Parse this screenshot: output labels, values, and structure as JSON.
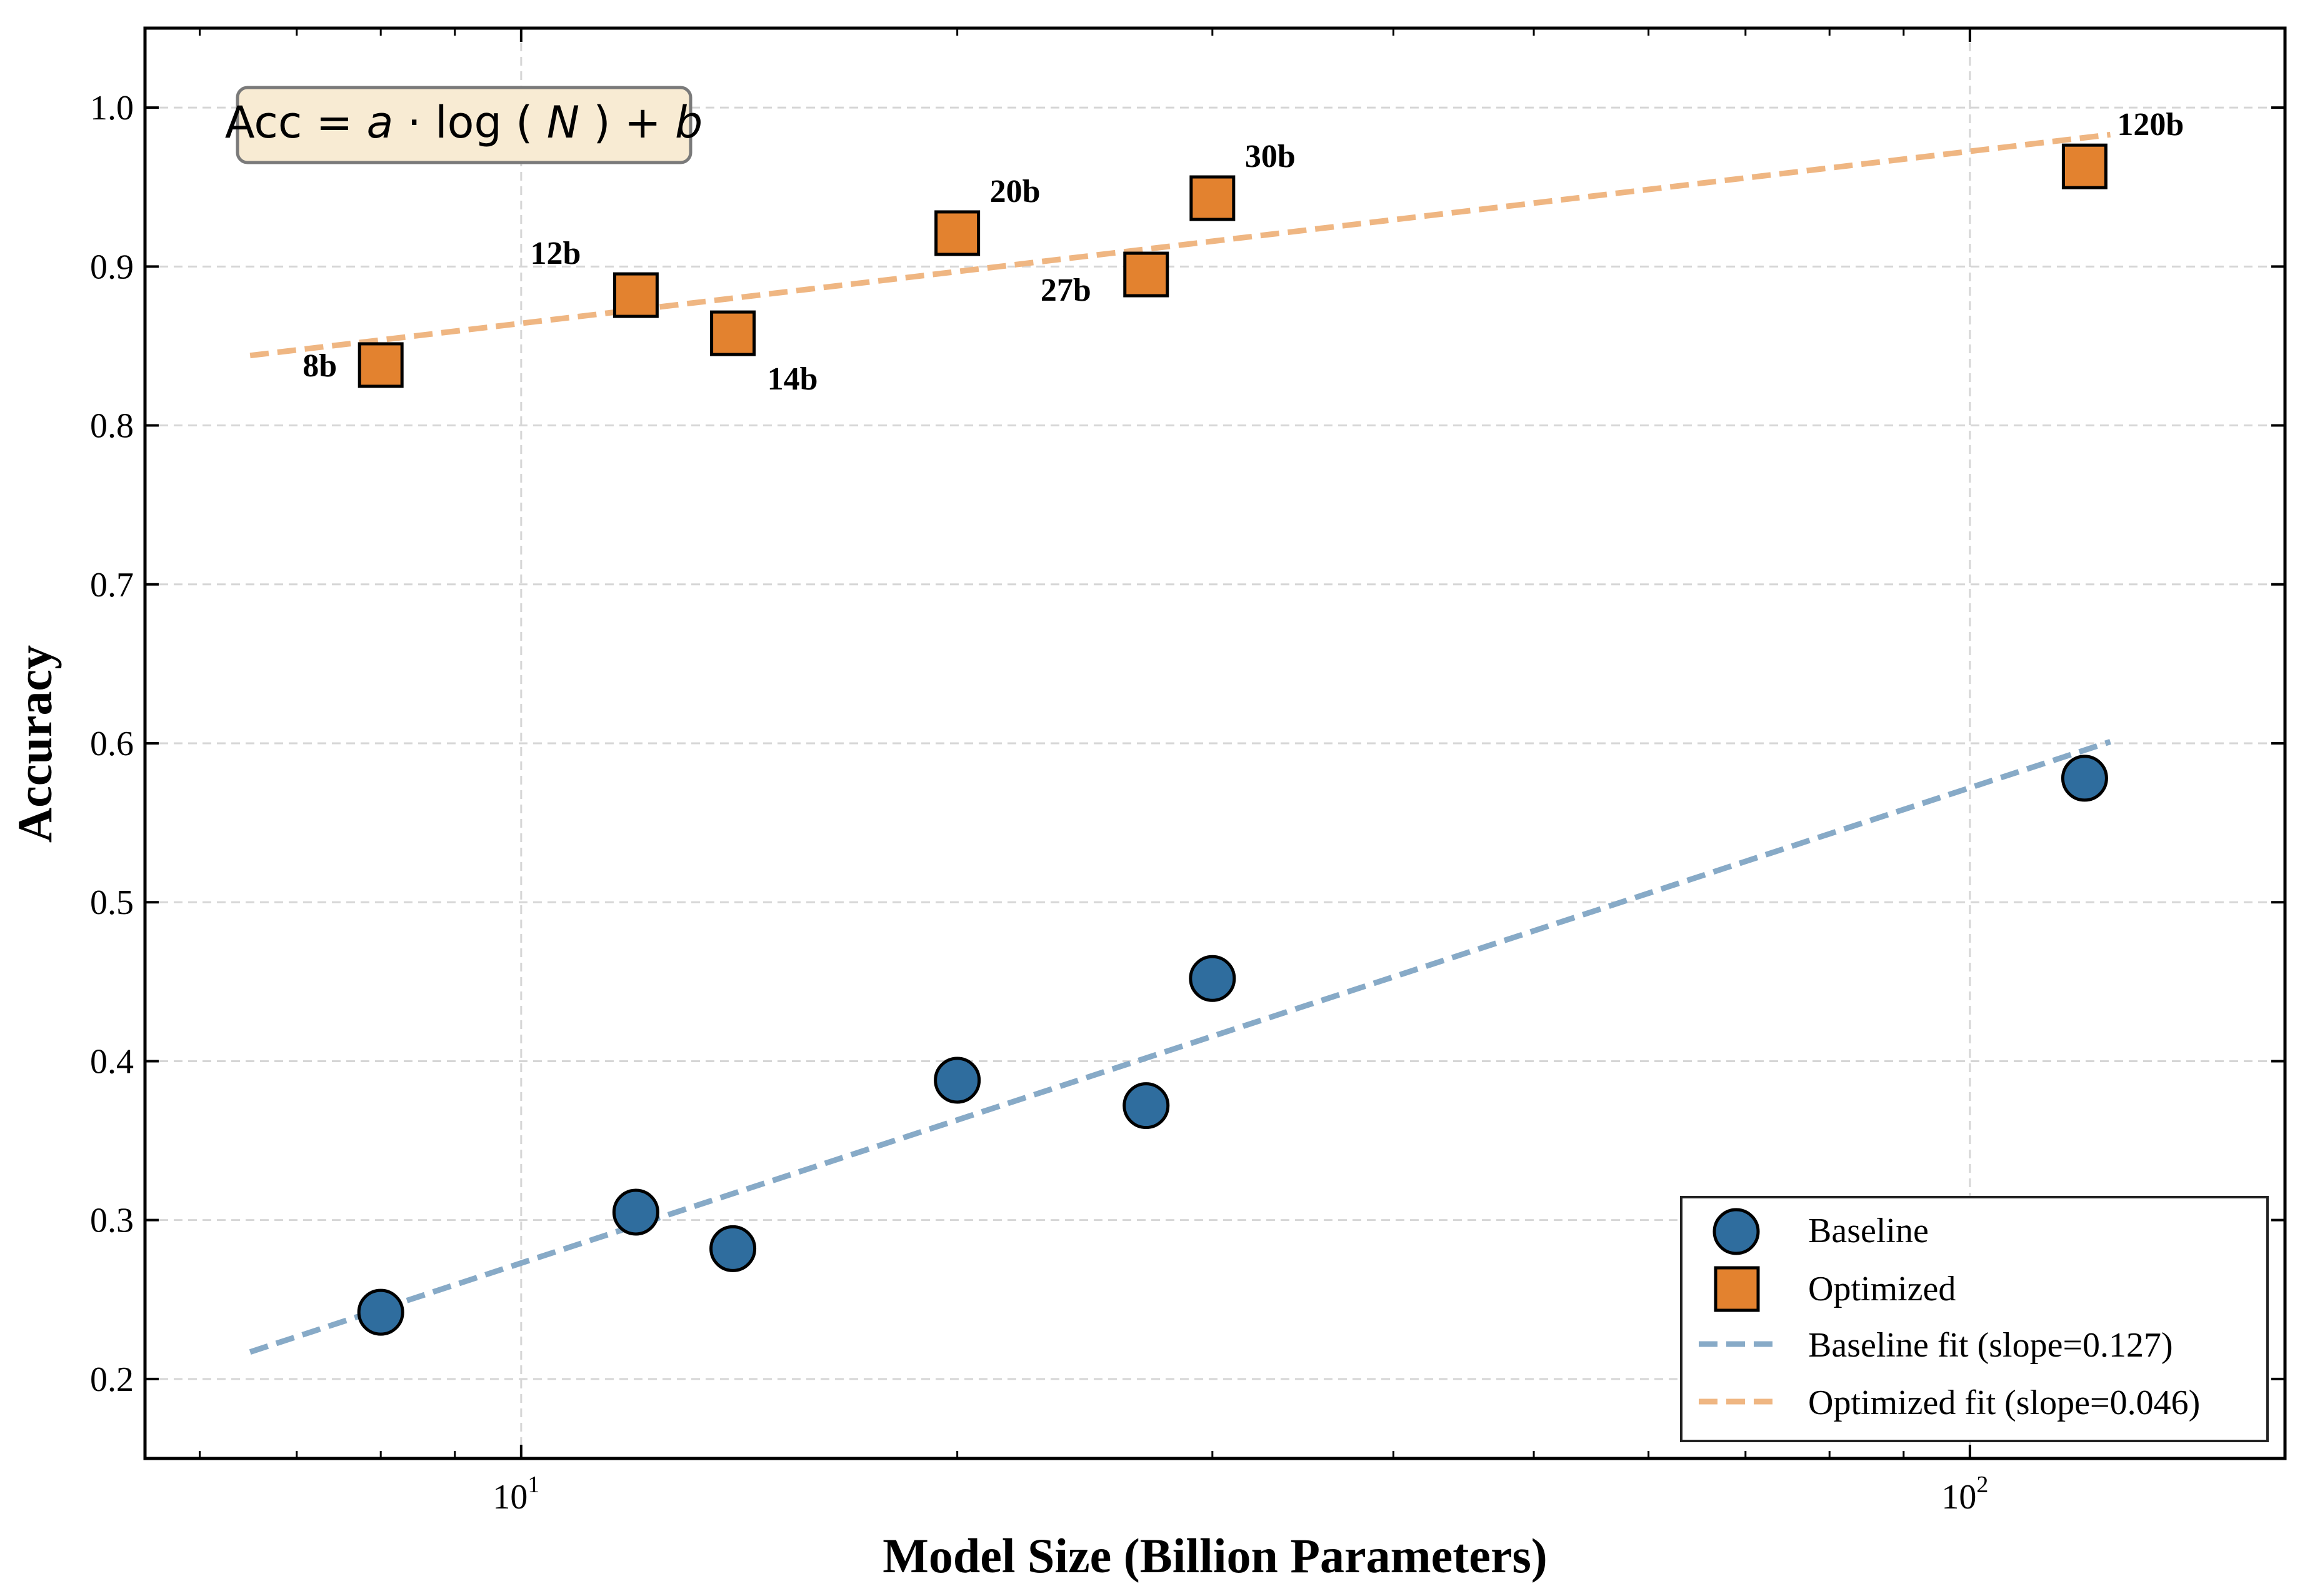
{
  "chart_data": {
    "type": "scatter",
    "title": "",
    "xlabel": "Model Size (Billion Parameters)",
    "ylabel": "Accuracy",
    "xscale": "log",
    "xlim": [
      5.5,
      165
    ],
    "ylim": [
      0.15,
      1.05
    ],
    "x_major_ticks": [
      {
        "value": 10,
        "base": "10",
        "exp": "1"
      },
      {
        "value": 100,
        "base": "10",
        "exp": "2"
      }
    ],
    "x_minor_ticks": [
      6,
      7,
      8,
      9,
      20,
      30,
      40,
      50,
      60,
      70,
      80,
      90
    ],
    "y_ticks": [
      {
        "value": 0.2,
        "label": "0.2"
      },
      {
        "value": 0.3,
        "label": "0.3"
      },
      {
        "value": 0.4,
        "label": "0.4"
      },
      {
        "value": 0.5,
        "label": "0.5"
      },
      {
        "value": 0.6,
        "label": "0.6"
      },
      {
        "value": 0.7,
        "label": "0.7"
      },
      {
        "value": 0.8,
        "label": "0.8"
      },
      {
        "value": 0.9,
        "label": "0.9"
      },
      {
        "value": 1.0,
        "label": "1.0"
      }
    ],
    "grid": true,
    "legend_position": "bottom-right",
    "annotation": {
      "prefix": "Acc",
      "var_a": "a",
      "func": "log",
      "var_n": "N",
      "var_b": "b"
    },
    "series": [
      {
        "name": "Baseline",
        "marker": "circle",
        "color": "#2f6d9e",
        "x": [
          8,
          12,
          14,
          20,
          27,
          30,
          120
        ],
        "y": [
          0.242,
          0.305,
          0.282,
          0.388,
          0.372,
          0.452,
          0.578
        ]
      },
      {
        "name": "Optimized",
        "marker": "square",
        "color": "#e3822f",
        "x": [
          8,
          12,
          14,
          20,
          27,
          30,
          120
        ],
        "y": [
          0.838,
          0.882,
          0.858,
          0.921,
          0.895,
          0.943,
          0.963
        ],
        "labels": [
          {
            "text": "8b",
            "pos": "left"
          },
          {
            "text": "12b",
            "pos": "upper-left"
          },
          {
            "text": "14b",
            "pos": "lower-right"
          },
          {
            "text": "20b",
            "pos": "upper-right"
          },
          {
            "text": "27b",
            "pos": "lower-left"
          },
          {
            "text": "30b",
            "pos": "upper-right"
          },
          {
            "text": "120b",
            "pos": "upper-right"
          }
        ]
      }
    ],
    "fits": [
      {
        "name": "Baseline fit (slope=0.127)",
        "color": "#87aac7",
        "x_range": [
          6.5,
          125
        ],
        "y_range": [
          0.217,
          0.601
        ]
      },
      {
        "name": "Optimized fit (slope=0.046)",
        "color": "#efb682",
        "x_range": [
          6.5,
          125
        ],
        "y_range": [
          0.844,
          0.983
        ]
      }
    ]
  }
}
